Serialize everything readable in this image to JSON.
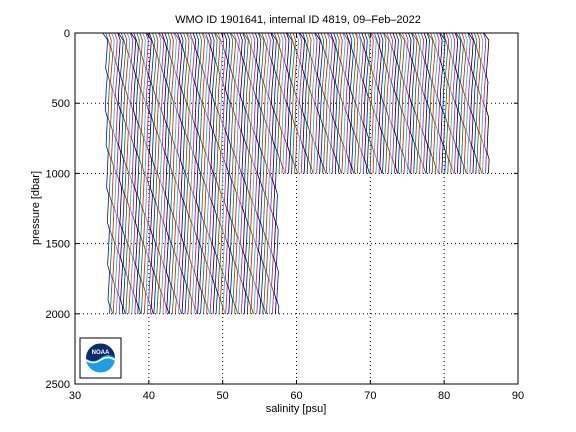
{
  "chart_data": {
    "type": "line",
    "title": "WMO ID 1901641, internal ID 4819, 09–Feb–2022",
    "xlabel": "salinity [psu]",
    "ylabel": "pressure [dbar]",
    "xlim": [
      30,
      90
    ],
    "ylim": [
      0,
      2500
    ],
    "y_reversed": true,
    "grid": true,
    "x_ticks": [
      30,
      40,
      50,
      60,
      70,
      80,
      90
    ],
    "y_ticks": [
      0,
      500,
      1000,
      1500,
      2000,
      2500
    ],
    "series_colors": [
      "#0000ff",
      "#008000",
      "#ff0000",
      "#00bfbf",
      "#bf00bf",
      "#000000"
    ],
    "profiles": {
      "count": 150,
      "first_offset_psu": 34.6,
      "last_offset_psu": 86.2,
      "profile_shape": [
        [
          0,
          34.0
        ],
        [
          50,
          34.4
        ],
        [
          150,
          34.4
        ],
        [
          400,
          34.3
        ],
        [
          700,
          34.4
        ],
        [
          1000,
          34.5
        ],
        [
          1500,
          34.65
        ],
        [
          2000,
          34.7
        ]
      ],
      "max_depth_deep_dbar": 2000,
      "max_depth_shallow_dbar": 1000,
      "deep_profiles_until_psu": 57.5
    }
  },
  "logo": {
    "name": "noaa-logo",
    "text": "NOAA",
    "colors": {
      "dark": "#0d2c6c",
      "light": "#1e9fe0",
      "white": "#ffffff"
    }
  }
}
